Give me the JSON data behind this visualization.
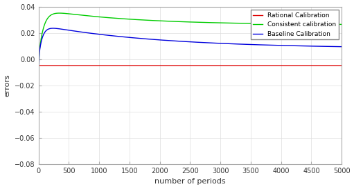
{
  "title": "",
  "xlabel": "number of periods",
  "ylabel": "errors",
  "xlim": [
    0,
    5000
  ],
  "ylim": [
    -0.08,
    0.04
  ],
  "yticks": [
    -0.08,
    -0.06,
    -0.04,
    -0.02,
    0,
    0.02,
    0.04
  ],
  "xticks": [
    0,
    500,
    1000,
    1500,
    2000,
    2500,
    3000,
    3500,
    4000,
    4500,
    5000
  ],
  "bg_color": "#ffffff",
  "line_colors": {
    "rational": "#dd0000",
    "consistent": "#00cc00",
    "baseline": "#0000dd"
  },
  "legend_labels": [
    "Rational Calibration",
    "Consistent calibration",
    "Baseline Calibration"
  ]
}
